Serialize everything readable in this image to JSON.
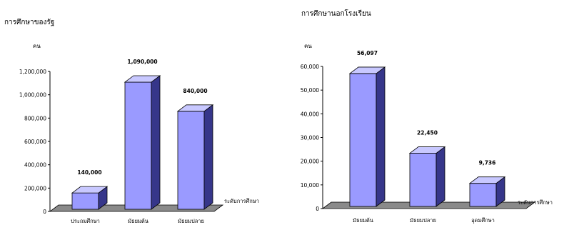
{
  "chart_data": [
    {
      "type": "bar",
      "style": "3d-column",
      "title": "การศึกษาของรัฐ",
      "unit_label": "คน",
      "xlabel": "ระดับการศึกษา",
      "categories": [
        "ประถมศึกษา",
        "มัธยมต้น",
        "มัธยมปลาย"
      ],
      "values": [
        140000,
        1090000,
        840000
      ],
      "data_labels": [
        "140,000",
        "1,090,000",
        "840,000"
      ],
      "ylim": [
        0,
        1200000
      ],
      "yticks": [
        0,
        200000,
        400000,
        600000,
        800000,
        1000000,
        1200000
      ],
      "ytick_labels": [
        "0",
        "200,000",
        "400,000",
        "600,000",
        "800,000",
        "1,000,000",
        "1,200,000"
      ],
      "grid": false,
      "legend": "none",
      "bar_color": "#9a9aff",
      "bar_side_color": "#36368a",
      "bar_top_color": "#c8c8ff",
      "floor_color": "#8a8a8a"
    },
    {
      "type": "bar",
      "style": "3d-column",
      "title": "การศึกษานอกโรงเรียน",
      "unit_label": "คน",
      "xlabel": "ระดับการศึกษา",
      "categories": [
        "มัธยมต้น",
        "มัธยมปลาย",
        "อุดมศึกษา"
      ],
      "values": [
        56097,
        22450,
        9736
      ],
      "data_labels": [
        "56,097",
        "22,450",
        "9,736"
      ],
      "ylim": [
        0,
        60000
      ],
      "yticks": [
        0,
        10000,
        20000,
        30000,
        40000,
        50000,
        60000
      ],
      "ytick_labels": [
        "0",
        "10,000",
        "20,000",
        "30,000",
        "40,000",
        "50,000",
        "60,000"
      ],
      "grid": false,
      "legend": "none",
      "bar_color": "#9a9aff",
      "bar_side_color": "#36368a",
      "bar_top_color": "#c8c8ff",
      "floor_color": "#8a8a8a"
    }
  ]
}
